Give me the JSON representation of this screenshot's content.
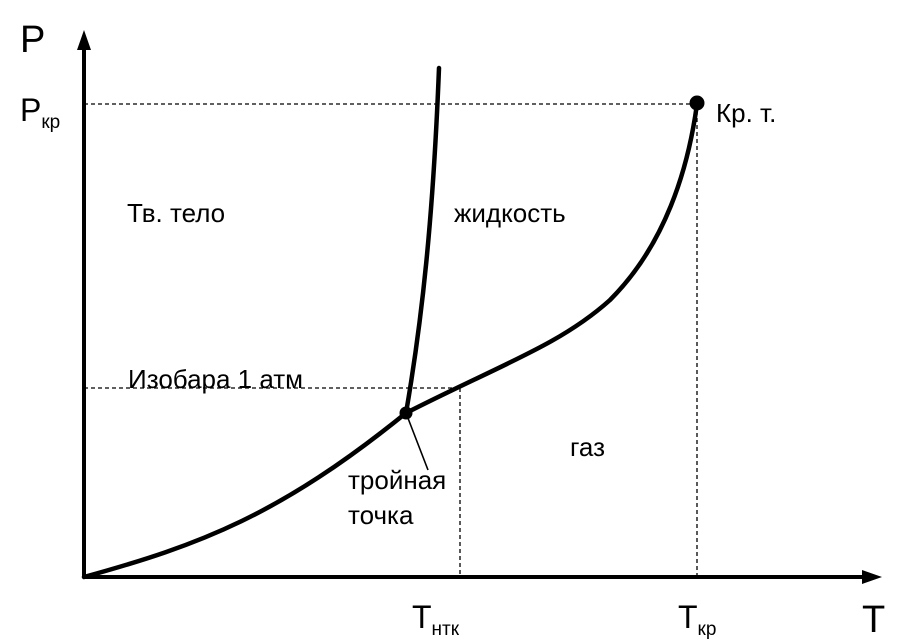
{
  "axes": {
    "y_label": "P",
    "x_label": "T"
  },
  "ticks": {
    "p_crit": {
      "main": "P",
      "sub": "кр"
    },
    "t_ntk": {
      "main": "T",
      "sub": "нтк"
    },
    "t_crit": {
      "main": "T",
      "sub": "кр"
    }
  },
  "regions": {
    "solid": "Тв. тело",
    "liquid": "жидкость",
    "gas": "газ"
  },
  "annotations": {
    "critical_point": "Кр. т.",
    "isobar": "Изобара 1 атм",
    "triple_point_line1": "тройная",
    "triple_point_line2": "точка"
  },
  "colors": {
    "ink": "#000000",
    "background": "#ffffff"
  }
}
